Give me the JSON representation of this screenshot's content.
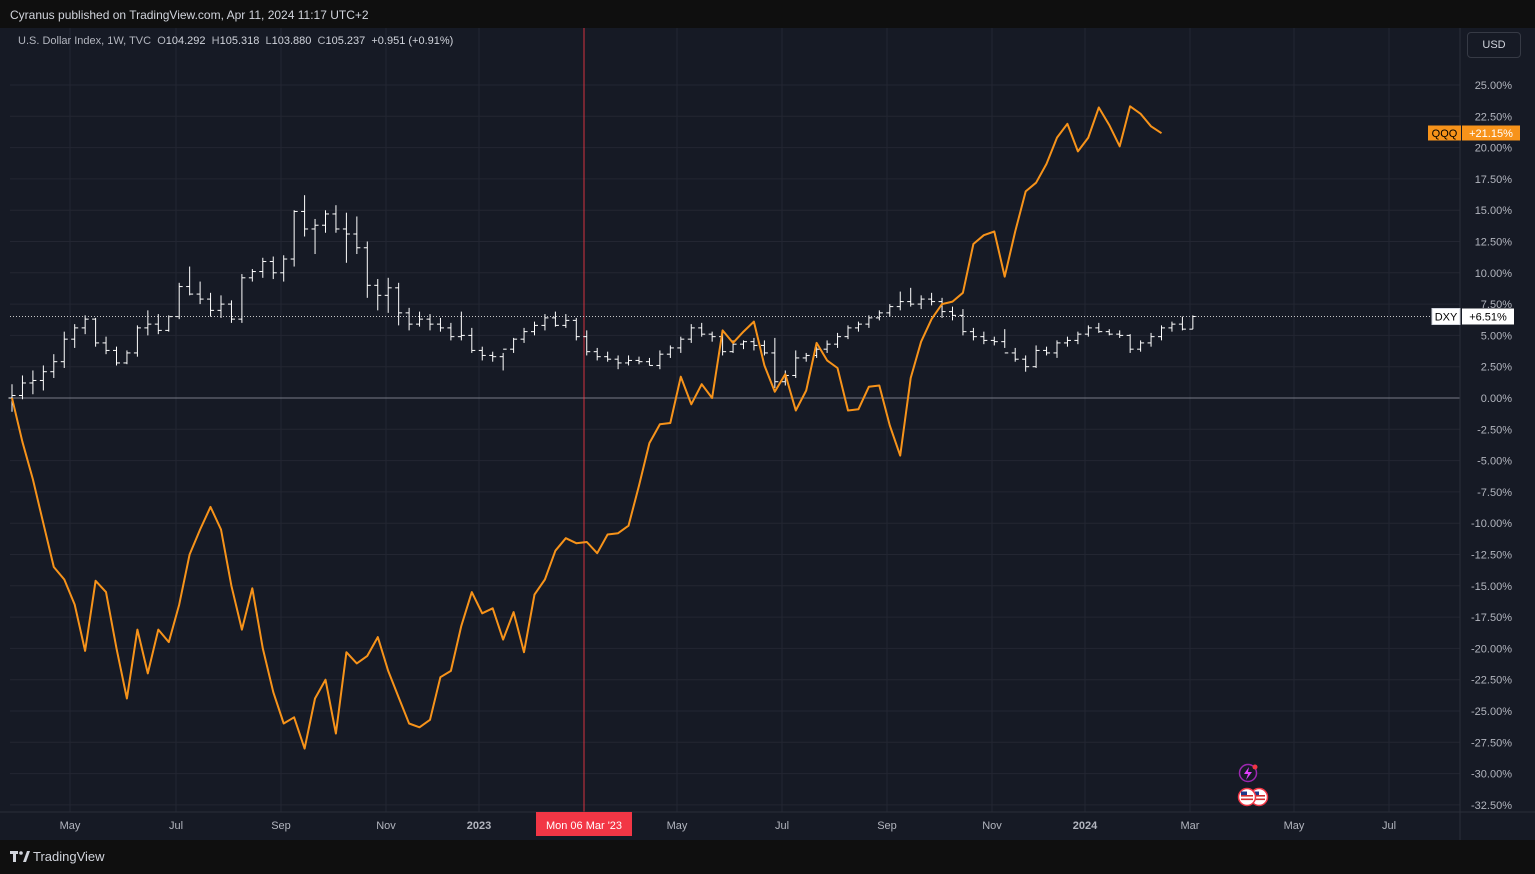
{
  "header": {
    "published": "Cyranus published on TradingView.com, Apr 11, 2024 11:17 UTC+2"
  },
  "legend": {
    "symbol": "U.S. Dollar Index, 1W, TVC",
    "o_label": "O",
    "o": "104.292",
    "h_label": "H",
    "h": "105.318",
    "l_label": "L",
    "l": "103.880",
    "c_label": "C",
    "c": "105.237",
    "change": "+0.951 (+0.91%)"
  },
  "currency_button": "USD",
  "footer": {
    "brand": "TradingView"
  },
  "crosshair_label": "Mon 06 Mar '23",
  "colors": {
    "qqq": "#f7931a",
    "dxy": "#ffffff",
    "background": "#161a25",
    "crosshair": "#f23645"
  },
  "chart_data": {
    "type": "line",
    "y_unit": "%",
    "ylim": [
      -33.5,
      26.5
    ],
    "y_ticks": [
      "25.00%",
      "22.50%",
      "20.00%",
      "17.50%",
      "15.00%",
      "12.50%",
      "10.00%",
      "7.50%",
      "5.00%",
      "2.50%",
      "0.00%",
      "-2.50%",
      "-5.00%",
      "-7.50%",
      "-10.00%",
      "-12.50%",
      "-15.00%",
      "-17.50%",
      "-20.00%",
      "-22.50%",
      "-25.00%",
      "-27.50%",
      "-30.00%",
      "-32.50%"
    ],
    "x_ticks": [
      "May",
      "Jul",
      "Sep",
      "Nov",
      "2023",
      "May",
      "Jul",
      "Sep",
      "Nov",
      "2024",
      "Mar",
      "May",
      "Jul"
    ],
    "grid": true,
    "series": [
      {
        "name": "QQQ",
        "last_label": "+21.15%",
        "values": [
          0,
          -3.5,
          -6.5,
          -10,
          -13.5,
          -14.5,
          -16.5,
          -20.2,
          -14.6,
          -15.5,
          -20,
          -24,
          -18.5,
          -22,
          -18.5,
          -19.5,
          -16.5,
          -12.5,
          -10.5,
          -8.7,
          -10.5,
          -15,
          -18.5,
          -15.2,
          -20,
          -23.5,
          -26,
          -25.5,
          -28,
          -24,
          -22.5,
          -26.8,
          -20.3,
          -21.2,
          -20.6,
          -19.1,
          -21.8,
          -23.9,
          -26,
          -26.3,
          -25.7,
          -22.3,
          -21.8,
          -18.2,
          -15.5,
          -17.2,
          -16.8,
          -19.3,
          -17.1,
          -20.3,
          -15.7,
          -14.5,
          -12.2,
          -11.2,
          -11.6,
          -11.5,
          -12.4,
          -10.9,
          -10.8,
          -10.2,
          -7,
          -3.6,
          -2.1,
          -2,
          1.7,
          -0.5,
          1.1,
          0,
          5.4,
          4.4,
          5.3,
          6.1,
          2.6,
          0.5,
          1.9,
          -1,
          0.6,
          4.4,
          3,
          2.4,
          -1,
          -0.9,
          0.9,
          1,
          -2.2,
          -4.6,
          1.6,
          4.5,
          6.3,
          7.5,
          7.7,
          8.4,
          12.3,
          13,
          13.3,
          9.7,
          13.3,
          16.5,
          17.2,
          18.7,
          20.8,
          21.9,
          19.7,
          20.8,
          23.2,
          21.8,
          20.1,
          23.3,
          22.7,
          21.7,
          21.15
        ]
      },
      {
        "name": "DXY",
        "last_label": "+6.51%",
        "bars": [
          [
            0,
            -1.1,
            1.1,
            0.2
          ],
          [
            0.2,
            -0.1,
            1.8,
            1.2
          ],
          [
            1.2,
            0.3,
            2.2,
            1.4
          ],
          [
            1.4,
            0.6,
            2.6,
            2.1
          ],
          [
            2.1,
            1.6,
            3.5,
            2.9
          ],
          [
            2.9,
            2.4,
            5.3,
            4.7
          ],
          [
            4.7,
            4.0,
            5.9,
            5.6
          ],
          [
            5.6,
            5.1,
            6.6,
            6.3
          ],
          [
            6.3,
            4.1,
            6.4,
            4.4
          ],
          [
            4.4,
            3.5,
            4.9,
            3.8
          ],
          [
            3.8,
            2.6,
            4.1,
            2.8
          ],
          [
            2.8,
            2.7,
            3.8,
            3.6
          ],
          [
            3.6,
            3.3,
            5.8,
            5.6
          ],
          [
            5.6,
            5.0,
            7.0,
            5.9
          ],
          [
            5.9,
            5.1,
            6.7,
            5.4
          ],
          [
            5.4,
            5.3,
            6.6,
            6.5
          ],
          [
            6.5,
            6.3,
            9.2,
            8.9
          ],
          [
            8.9,
            8.2,
            10.5,
            8.3
          ],
          [
            8.3,
            7.5,
            9.3,
            7.9
          ],
          [
            7.9,
            6.5,
            8.4,
            7.0
          ],
          [
            7.0,
            6.4,
            8.2,
            7.5
          ],
          [
            7.5,
            6.0,
            7.8,
            6.3
          ],
          [
            6.3,
            6.0,
            9.9,
            9.6
          ],
          [
            9.6,
            9.3,
            10.3,
            10.1
          ],
          [
            10.1,
            9.6,
            11.2,
            10.9
          ],
          [
            10.9,
            9.5,
            11.3,
            10.0
          ],
          [
            10.0,
            9.3,
            11.4,
            11.1
          ],
          [
            11.1,
            10.5,
            15.0,
            14.9
          ],
          [
            14.9,
            12.9,
            16.2,
            13.5
          ],
          [
            13.5,
            11.5,
            14.3,
            13.8
          ],
          [
            13.8,
            13.2,
            15.0,
            14.7
          ],
          [
            14.7,
            13.2,
            15.4,
            13.5
          ],
          [
            13.5,
            10.8,
            14.8,
            13.1
          ],
          [
            13.1,
            11.5,
            14.5,
            12.0
          ],
          [
            12.0,
            8.0,
            12.5,
            9.0
          ],
          [
            9.0,
            7.0,
            9.5,
            8.2
          ],
          [
            8.2,
            6.8,
            9.6,
            8.8
          ],
          [
            8.8,
            5.8,
            9.2,
            6.8
          ],
          [
            6.8,
            5.4,
            7.2,
            5.9
          ],
          [
            5.9,
            5.7,
            6.9,
            6.3
          ],
          [
            6.3,
            5.4,
            6.7,
            5.9
          ],
          [
            5.9,
            5.3,
            6.4,
            5.6
          ],
          [
            5.6,
            4.6,
            6.0,
            4.9
          ],
          [
            4.9,
            4.6,
            6.9,
            5.0
          ],
          [
            5.0,
            3.6,
            5.6,
            3.8
          ],
          [
            3.8,
            3.0,
            4.1,
            3.4
          ],
          [
            3.4,
            2.9,
            3.7,
            3.3
          ],
          [
            3.3,
            2.2,
            3.6,
            3.9
          ],
          [
            3.9,
            3.6,
            4.8,
            4.7
          ],
          [
            4.7,
            4.4,
            5.6,
            5.3
          ],
          [
            5.3,
            5.0,
            6.1,
            5.8
          ],
          [
            5.8,
            5.4,
            6.7,
            6.4
          ],
          [
            6.4,
            5.7,
            6.9,
            5.8
          ],
          [
            5.8,
            5.6,
            6.7,
            6.2
          ],
          [
            6.2,
            4.6,
            6.4,
            4.9
          ],
          [
            4.9,
            3.4,
            5.4,
            3.7
          ],
          [
            3.7,
            3.0,
            4.0,
            3.3
          ],
          [
            3.3,
            2.9,
            3.7,
            3.1
          ],
          [
            3.1,
            2.3,
            3.4,
            2.8
          ],
          [
            2.8,
            2.6,
            3.4,
            3.0
          ],
          [
            3.0,
            2.7,
            3.3,
            2.9
          ],
          [
            2.9,
            2.6,
            3.2,
            2.6
          ],
          [
            2.6,
            2.3,
            3.8,
            3.5
          ],
          [
            3.5,
            3.2,
            4.2,
            4.0
          ],
          [
            4.0,
            3.6,
            4.9,
            4.7
          ],
          [
            4.7,
            4.4,
            5.9,
            5.6
          ],
          [
            5.6,
            4.9,
            6.0,
            5.1
          ],
          [
            5.1,
            4.5,
            5.3,
            4.9
          ],
          [
            4.9,
            3.4,
            5.2,
            3.7
          ],
          [
            3.7,
            3.6,
            4.6,
            4.3
          ],
          [
            4.3,
            3.9,
            4.6,
            4.5
          ],
          [
            4.5,
            3.8,
            4.8,
            4.2
          ],
          [
            4.2,
            3.4,
            4.6,
            3.6
          ],
          [
            3.6,
            0.8,
            4.8,
            1.3
          ],
          [
            1.3,
            1.0,
            2.2,
            1.8
          ],
          [
            1.8,
            1.6,
            3.8,
            3.2
          ],
          [
            3.2,
            2.9,
            3.6,
            3.4
          ],
          [
            3.4,
            3.2,
            4.1,
            3.9
          ],
          [
            3.9,
            3.6,
            4.6,
            4.3
          ],
          [
            4.3,
            4.0,
            5.2,
            4.9
          ],
          [
            4.9,
            4.7,
            5.8,
            5.6
          ],
          [
            5.6,
            5.3,
            6.1,
            5.9
          ],
          [
            5.9,
            5.6,
            6.6,
            6.4
          ],
          [
            6.4,
            6.2,
            7.0,
            6.8
          ],
          [
            6.8,
            6.5,
            7.5,
            7.3
          ],
          [
            7.3,
            7.0,
            8.5,
            7.7
          ],
          [
            7.7,
            7.3,
            8.8,
            7.5
          ],
          [
            7.5,
            7.1,
            8.2,
            7.9
          ],
          [
            7.9,
            7.4,
            8.4,
            7.7
          ],
          [
            7.7,
            6.4,
            8.0,
            6.9
          ],
          [
            6.9,
            6.2,
            7.3,
            6.6
          ],
          [
            6.6,
            5.0,
            7.1,
            5.3
          ],
          [
            5.3,
            4.6,
            5.6,
            4.9
          ],
          [
            4.9,
            4.3,
            5.3,
            4.6
          ],
          [
            4.6,
            4.2,
            4.9,
            4.5
          ],
          [
            4.5,
            4.0,
            5.5,
            3.6
          ],
          [
            3.6,
            2.9,
            4.0,
            3.1
          ],
          [
            3.1,
            2.1,
            3.4,
            2.5
          ],
          [
            2.5,
            2.4,
            4.2,
            3.8
          ],
          [
            3.8,
            3.4,
            4.1,
            3.6
          ],
          [
            3.6,
            3.2,
            4.6,
            4.4
          ],
          [
            4.4,
            4.1,
            4.9,
            4.6
          ],
          [
            4.6,
            4.3,
            5.3,
            5.1
          ],
          [
            5.1,
            4.9,
            5.8,
            5.6
          ],
          [
            5.6,
            5.2,
            6.0,
            5.3
          ],
          [
            5.3,
            5.0,
            5.5,
            5.1
          ],
          [
            5.1,
            4.8,
            5.4,
            5.0
          ],
          [
            5.0,
            3.6,
            5.1,
            3.9
          ],
          [
            3.9,
            3.7,
            4.6,
            4.4
          ],
          [
            4.4,
            4.1,
            5.2,
            4.9
          ],
          [
            4.9,
            4.6,
            5.8,
            5.6
          ],
          [
            5.6,
            5.3,
            6.1,
            5.9
          ],
          [
            5.9,
            5.4,
            6.5,
            5.5
          ],
          [
            5.5,
            5.5,
            6.6,
            6.51
          ]
        ]
      }
    ],
    "crosshair_x_label": "Mon 06 Mar '23"
  }
}
